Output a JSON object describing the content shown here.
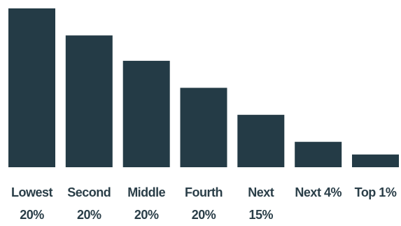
{
  "chart_data": {
    "type": "bar",
    "title": "",
    "xlabel": "",
    "ylabel": "",
    "ylim": [
      0,
      100
    ],
    "categories": [
      [
        "Lowest",
        "20%"
      ],
      [
        "Second",
        "20%"
      ],
      [
        "Middle",
        "20%"
      ],
      [
        "Fourth",
        "20%"
      ],
      [
        "Next",
        "15%"
      ],
      [
        "Next 4%"
      ],
      [
        "Top 1%"
      ]
    ],
    "values": [
      100,
      83,
      67,
      50,
      33,
      16,
      8
    ],
    "bar_color": "#243b46",
    "label_color": "#2a3e48",
    "grid": false,
    "legend": "none"
  }
}
